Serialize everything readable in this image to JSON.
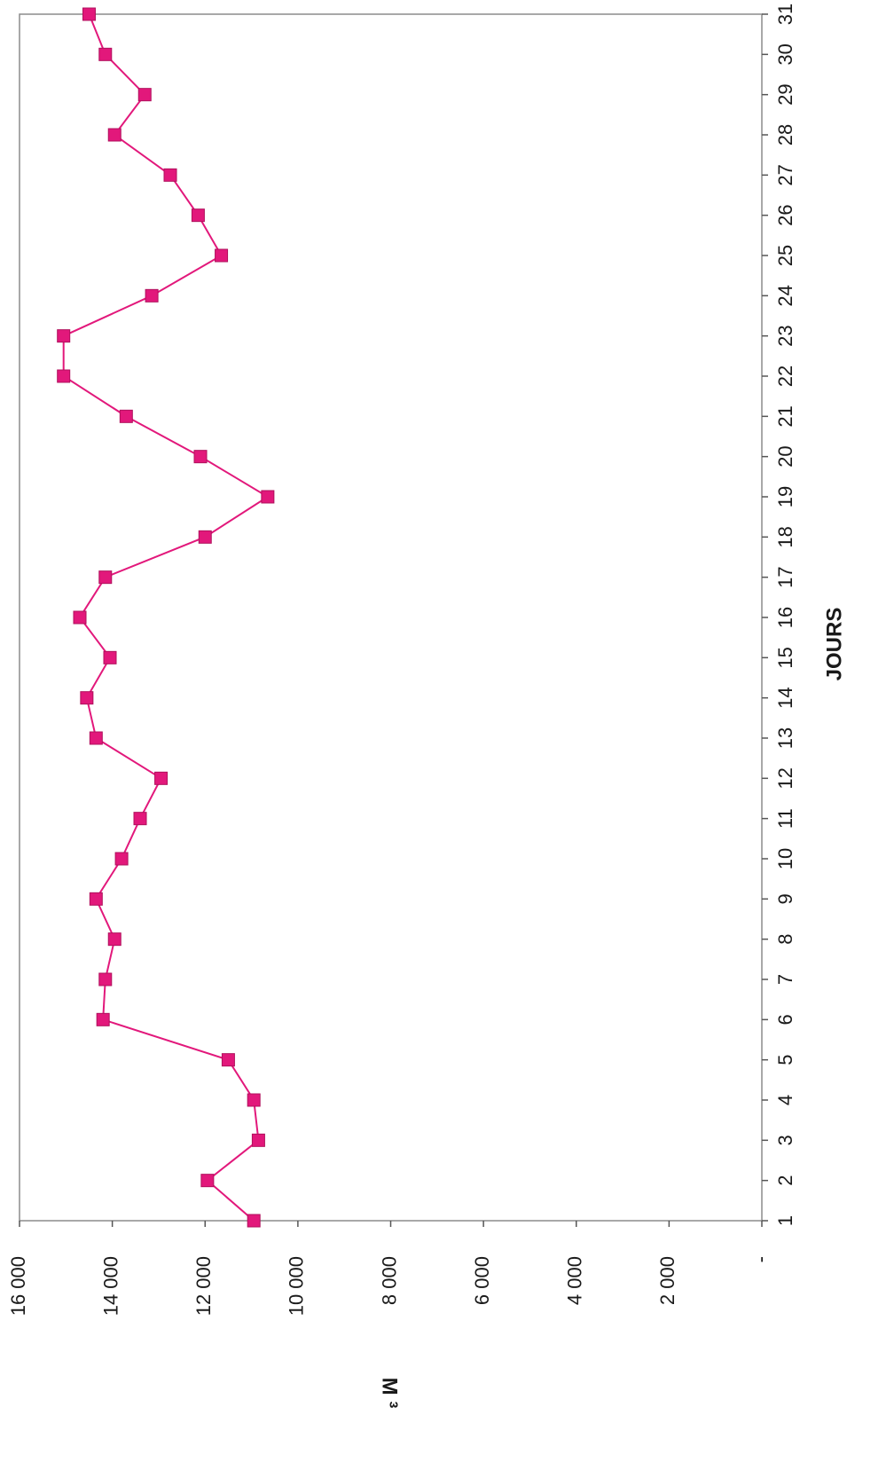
{
  "chart_data": {
    "type": "line",
    "orientation": "rotated 90° clockwise (page viewed in portrait)",
    "xlabel": "JOURS",
    "ylabel": "M ³",
    "categories": [
      "1",
      "2",
      "3",
      "4",
      "5",
      "6",
      "7",
      "8",
      "9",
      "10",
      "11",
      "12",
      "13",
      "14",
      "15",
      "16",
      "17",
      "18",
      "19",
      "20",
      "21",
      "22",
      "23",
      "24",
      "25",
      "26",
      "27",
      "28",
      "29",
      "30",
      "31"
    ],
    "values": [
      10950,
      11950,
      10850,
      10950,
      11500,
      14200,
      14150,
      13950,
      14350,
      13800,
      13400,
      12950,
      14350,
      14550,
      14050,
      14700,
      14150,
      12000,
      10650,
      12100,
      13700,
      15050,
      15050,
      13150,
      11650,
      12150,
      12750,
      13950,
      13300,
      14150,
      14500
    ],
    "ylim": [
      0,
      16000
    ],
    "y_ticks": [
      "16 000",
      "14 000",
      "12 000",
      "10 000",
      "8 000",
      "6 000",
      "4 000",
      "2 000",
      "-"
    ],
    "y_tick_values": [
      16000,
      14000,
      12000,
      10000,
      8000,
      6000,
      4000,
      2000,
      0
    ],
    "grid": false,
    "legend": "none",
    "series_color": "#e2187b",
    "marker": "square"
  }
}
